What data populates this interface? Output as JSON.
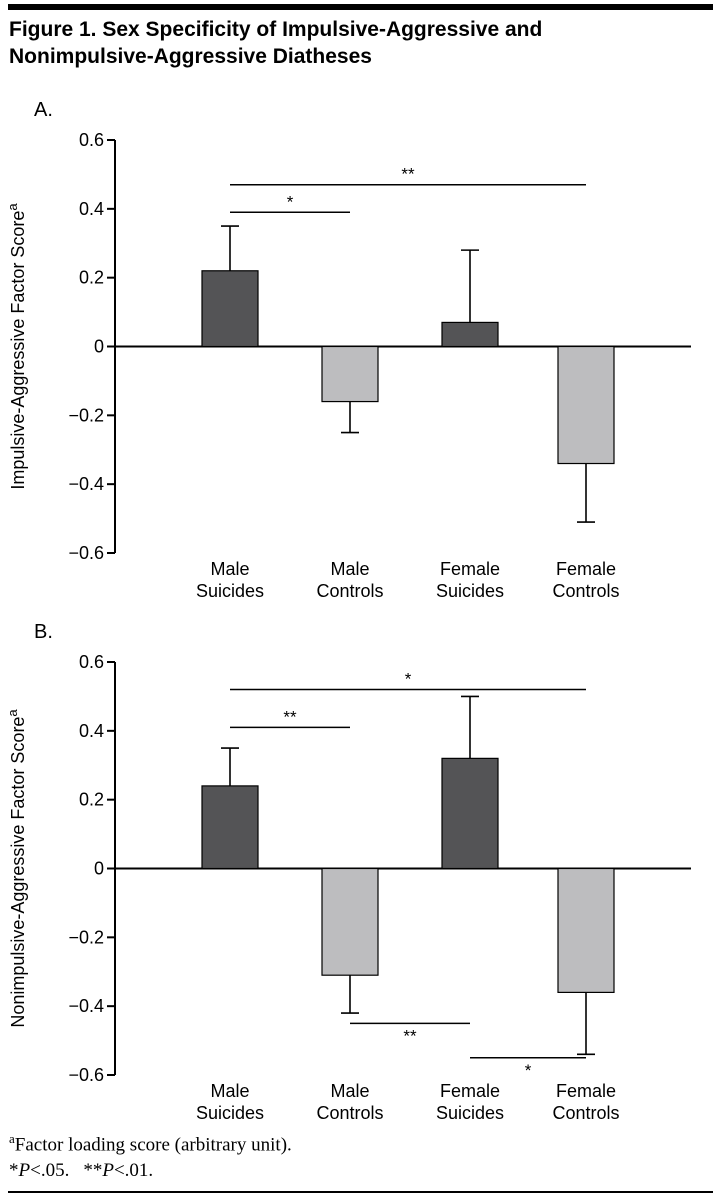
{
  "header": {
    "title_line1": "Figure 1. Sex Specificity of Impulsive-Aggressive and",
    "title_line2": "Nonimpulsive-Aggressive Diatheses"
  },
  "colors": {
    "dark_bar": "#545456",
    "light_bar": "#bdbdbf",
    "axis": "#000000"
  },
  "footnotes": {
    "note_sup": "a",
    "note_text": "Factor loading score (arbitrary unit).",
    "sig_parts": [
      "*",
      "P",
      "<.05.",
      "**",
      "P",
      "<.01."
    ]
  },
  "chart_data": [
    {
      "id": "A",
      "type": "bar",
      "panel_label": "A.",
      "ylabel": "Impulsive-Aggressive Factor Score",
      "ylabel_superscript": "a",
      "ylim": [
        -0.6,
        0.6
      ],
      "grid": false,
      "legend": "none",
      "yticks": [
        {
          "v": 0.6,
          "label": "0.6"
        },
        {
          "v": 0.4,
          "label": "0.4"
        },
        {
          "v": 0.2,
          "label": "0.2"
        },
        {
          "v": 0.0,
          "label": "0"
        },
        {
          "v": -0.2,
          "label": "−0.2"
        },
        {
          "v": -0.4,
          "label": "−0.4"
        },
        {
          "v": -0.6,
          "label": "−0.6"
        }
      ],
      "categories": [
        {
          "line1": "Male",
          "line2": "Suicides"
        },
        {
          "line1": "Male",
          "line2": "Controls"
        },
        {
          "line1": "Female",
          "line2": "Suicides"
        },
        {
          "line1": "Female",
          "line2": "Controls"
        }
      ],
      "values": [
        0.22,
        -0.16,
        0.07,
        -0.34
      ],
      "errors": [
        0.13,
        0.09,
        0.21,
        0.17
      ],
      "bar_styles": [
        "dark",
        "light",
        "dark",
        "light"
      ],
      "sig_brackets": [
        {
          "from": 0,
          "to": 1,
          "y": 0.39,
          "label": "*",
          "side": "above"
        },
        {
          "from": 0,
          "to": 3,
          "y": 0.47,
          "label": "**",
          "side": "above"
        }
      ]
    },
    {
      "id": "B",
      "type": "bar",
      "panel_label": "B.",
      "ylabel": "Nonimpulsive-Aggressive Factor Score",
      "ylabel_superscript": "a",
      "ylim": [
        -0.6,
        0.6
      ],
      "grid": false,
      "legend": "none",
      "yticks": [
        {
          "v": 0.6,
          "label": "0.6"
        },
        {
          "v": 0.4,
          "label": "0.4"
        },
        {
          "v": 0.2,
          "label": "0.2"
        },
        {
          "v": 0.0,
          "label": "0"
        },
        {
          "v": -0.2,
          "label": "−0.2"
        },
        {
          "v": -0.4,
          "label": "−0.4"
        },
        {
          "v": -0.6,
          "label": "−0.6"
        }
      ],
      "categories": [
        {
          "line1": "Male",
          "line2": "Suicides"
        },
        {
          "line1": "Male",
          "line2": "Controls"
        },
        {
          "line1": "Female",
          "line2": "Suicides"
        },
        {
          "line1": "Female",
          "line2": "Controls"
        }
      ],
      "values": [
        0.24,
        -0.31,
        0.32,
        -0.36
      ],
      "errors": [
        0.11,
        0.11,
        0.18,
        0.18
      ],
      "bar_styles": [
        "dark",
        "light",
        "dark",
        "light"
      ],
      "sig_brackets": [
        {
          "from": 0,
          "to": 1,
          "y": 0.41,
          "label": "**",
          "side": "above"
        },
        {
          "from": 0,
          "to": 3,
          "y": 0.52,
          "label": "*",
          "side": "above"
        },
        {
          "from": 1,
          "to": 2,
          "y": -0.45,
          "label": "**",
          "side": "below"
        },
        {
          "from": 2,
          "to": 3,
          "y": -0.55,
          "label": "*",
          "side": "below"
        }
      ]
    }
  ]
}
